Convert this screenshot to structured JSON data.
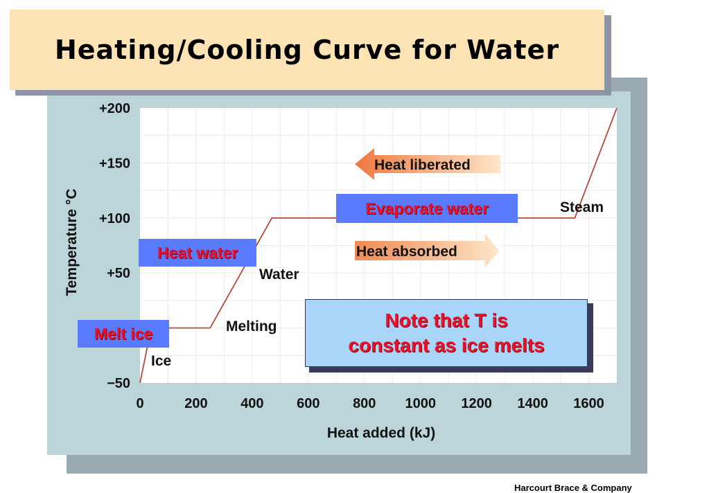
{
  "title": "Heating/Cooling Curve for Water",
  "credit": "Harcourt Brace & Company",
  "colors": {
    "panel": "#bcd5d8",
    "title_box": "#fce3b4",
    "curve": "#b54a3c",
    "label_box": "#5b7bff",
    "label_text": "#e8122a",
    "note_box": "#a9d6f8",
    "arrow": "#f3a070"
  },
  "chart_data": {
    "type": "line",
    "title": "",
    "xlabel": "Heat added (kJ)",
    "ylabel": "Temperature °C",
    "xlim": [
      0,
      1700
    ],
    "ylim": [
      -50,
      200
    ],
    "x_ticks": [
      0,
      200,
      400,
      600,
      800,
      1000,
      1200,
      1400,
      1600
    ],
    "x_tick_labels": [
      "0",
      "200",
      "400",
      "600",
      "800",
      "1000",
      "1200",
      "1400",
      "1600"
    ],
    "y_ticks": [
      -50,
      50,
      100,
      150,
      200
    ],
    "y_tick_labels": [
      "−50",
      "+50",
      "+100",
      "+150",
      "+200"
    ],
    "grid": true,
    "series": [
      {
        "values_x": [
          0,
          40,
          250,
          470,
          1550,
          1700
        ],
        "values_y": [
          -50,
          0,
          0,
          100,
          100,
          200
        ]
      }
    ],
    "annotations": {
      "ice": "Ice",
      "melting": "Melting",
      "water": "Water",
      "steam": "Steam",
      "heat_liberated": "Heat liberated",
      "heat_absorbed": "Heat absorbed"
    }
  },
  "labels": {
    "melt_ice": "Melt ice",
    "heat_water": "Heat water",
    "evaporate_water": "Evaporate water"
  },
  "note": {
    "line1": "Note that T is",
    "line2": "constant as ice melts"
  }
}
